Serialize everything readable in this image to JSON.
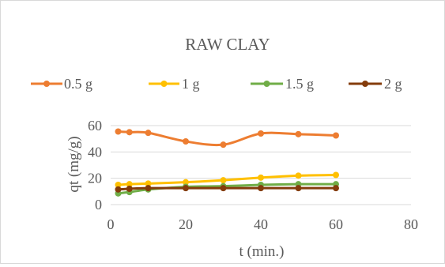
{
  "chart_data": {
    "type": "line",
    "title": "RAW CLAY",
    "xlabel": "t (min.)",
    "ylabel": "qt (mg/g)",
    "xlim": [
      0,
      80
    ],
    "ylim": [
      0,
      60
    ],
    "xticks": [
      "0",
      "20",
      "40",
      "60",
      "80"
    ],
    "yticks": [
      "0",
      "20",
      "40",
      "60"
    ],
    "grid": "horizontal",
    "legend": "top",
    "series": [
      {
        "name": "0.5 g",
        "color": "#ed7d31",
        "x": [
          2,
          5,
          10,
          20,
          30,
          40,
          50,
          60
        ],
        "y": [
          55.5,
          55,
          54.5,
          48,
          45.5,
          54,
          53.5,
          52.5
        ]
      },
      {
        "name": "1 g",
        "color": "#ffc000",
        "x": [
          2,
          5,
          10,
          20,
          30,
          40,
          50,
          60
        ],
        "y": [
          15,
          15.5,
          16,
          17,
          18.5,
          20.5,
          22,
          22.5
        ]
      },
      {
        "name": "1.5 g",
        "color": "#70ad47",
        "x": [
          2,
          5,
          10,
          20,
          30,
          40,
          50,
          60
        ],
        "y": [
          8.5,
          9.5,
          11.5,
          13.5,
          14,
          15,
          15.5,
          15.5
        ]
      },
      {
        "name": "2 g",
        "color": "#843c0c",
        "x": [
          2,
          5,
          10,
          20,
          30,
          40,
          50,
          60
        ],
        "y": [
          11.5,
          12,
          12.5,
          12.5,
          12.5,
          12.5,
          12.5,
          12.5
        ]
      }
    ]
  }
}
